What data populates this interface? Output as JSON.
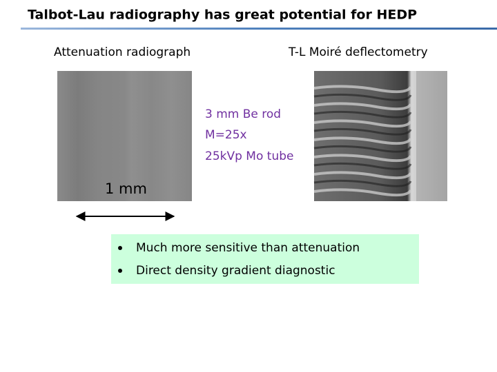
{
  "header": {
    "title": "Talbot-Lau radiography  has great potential for HEDP"
  },
  "panels": {
    "left_label": "Attenuation radiograph",
    "right_label": "T-L Moiré deflectometry"
  },
  "annotations": {
    "setup": [
      "3 mm Be rod",
      "M=25x",
      "25kVp Mo tube"
    ],
    "scale": "1 mm"
  },
  "bullets": [
    "Much more sensitive than attenuation",
    "Direct density gradient diagnostic"
  ]
}
